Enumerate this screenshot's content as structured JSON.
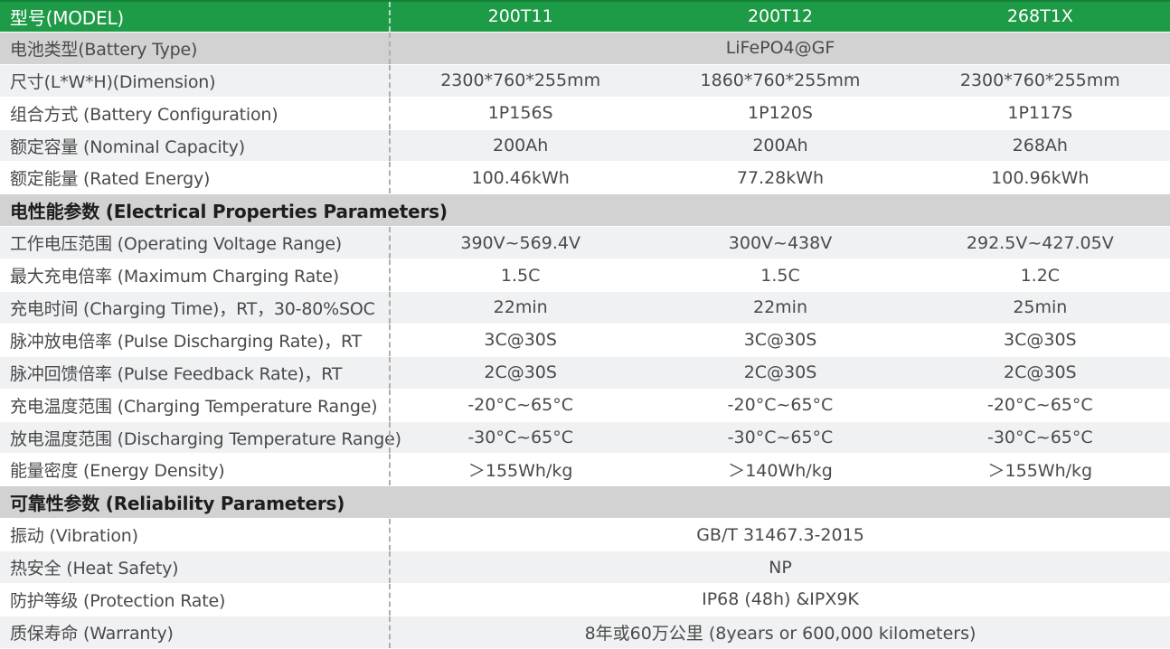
{
  "table": {
    "accent_green": "#1e9b46",
    "section_gray": "#d2d2d2",
    "stripe_gray": "#f0f1f3",
    "header": {
      "label": "型号(MODEL)",
      "models": [
        "200T11",
        "200T12",
        "268T1X"
      ]
    },
    "rows": [
      {
        "type": "span",
        "shade": "dark",
        "label": "电池类型(Battery Type)",
        "value": "LiFePO4@GF"
      },
      {
        "type": "cells",
        "shade": "light",
        "label": "尺寸(L*W*H)(Dimension)",
        "values": [
          "2300*760*255mm",
          "1860*760*255mm",
          "2300*760*255mm"
        ]
      },
      {
        "type": "cells",
        "shade": "white",
        "label": "组合方式 (Battery Configuration)",
        "values": [
          "1P156S",
          "1P120S",
          "1P117S"
        ]
      },
      {
        "type": "cells",
        "shade": "light",
        "label": "额定容量 (Nominal Capacity)",
        "values": [
          "200Ah",
          "200Ah",
          "268Ah"
        ]
      },
      {
        "type": "cells",
        "shade": "white",
        "label": "额定能量 (Rated Energy)",
        "values": [
          "100.46kWh",
          "77.28kWh",
          "100.96kWh"
        ]
      },
      {
        "type": "section",
        "label": "电性能参数 (Electrical Properties Parameters)"
      },
      {
        "type": "cells",
        "shade": "light",
        "label": "工作电压范围 (Operating Voltage Range)",
        "values": [
          "390V~569.4V",
          "300V~438V",
          "292.5V~427.05V"
        ]
      },
      {
        "type": "cells",
        "shade": "white",
        "label": "最大充电倍率 (Maximum Charging Rate)",
        "values": [
          "1.5C",
          "1.5C",
          "1.2C"
        ]
      },
      {
        "type": "cells",
        "shade": "light",
        "label": "充电时间 (Charging Time)，RT，30-80%SOC",
        "values": [
          "22min",
          "22min",
          "25min"
        ]
      },
      {
        "type": "cells",
        "shade": "white",
        "label": "脉冲放电倍率 (Pulse Discharging Rate)，RT",
        "values": [
          "3C@30S",
          "3C@30S",
          "3C@30S"
        ]
      },
      {
        "type": "cells",
        "shade": "light",
        "label": "脉冲回馈倍率 (Pulse Feedback Rate)，RT",
        "values": [
          "2C@30S",
          "2C@30S",
          "2C@30S"
        ]
      },
      {
        "type": "cells",
        "shade": "white",
        "label": "充电温度范围 (Charging Temperature Range)",
        "values": [
          "-20°C~65°C",
          "-20°C~65°C",
          "-20°C~65°C"
        ]
      },
      {
        "type": "cells",
        "shade": "light",
        "label": "放电温度范围 (Discharging Temperature Range)",
        "values": [
          "-30°C~65°C",
          "-30°C~65°C",
          "-30°C~65°C"
        ]
      },
      {
        "type": "cells",
        "shade": "white",
        "label": "能量密度 (Energy Density)",
        "values": [
          "＞155Wh/kg",
          "＞140Wh/kg",
          "＞155Wh/kg"
        ]
      },
      {
        "type": "section",
        "label": "可靠性参数 (Reliability Parameters)"
      },
      {
        "type": "span",
        "shade": "white",
        "label": "振动 (Vibration)",
        "value": "GB/T 31467.3-2015"
      },
      {
        "type": "span",
        "shade": "light",
        "label": "热安全 (Heat Safety)",
        "value": "NP"
      },
      {
        "type": "span",
        "shade": "white",
        "label": "防护等级 (Protection Rate)",
        "value": "IP68 (48h) &IPX9K"
      },
      {
        "type": "span",
        "shade": "light",
        "label": "质保寿命 (Warranty)",
        "value": "8年或60万公里 (8years or 600,000 kilometers)"
      }
    ]
  }
}
